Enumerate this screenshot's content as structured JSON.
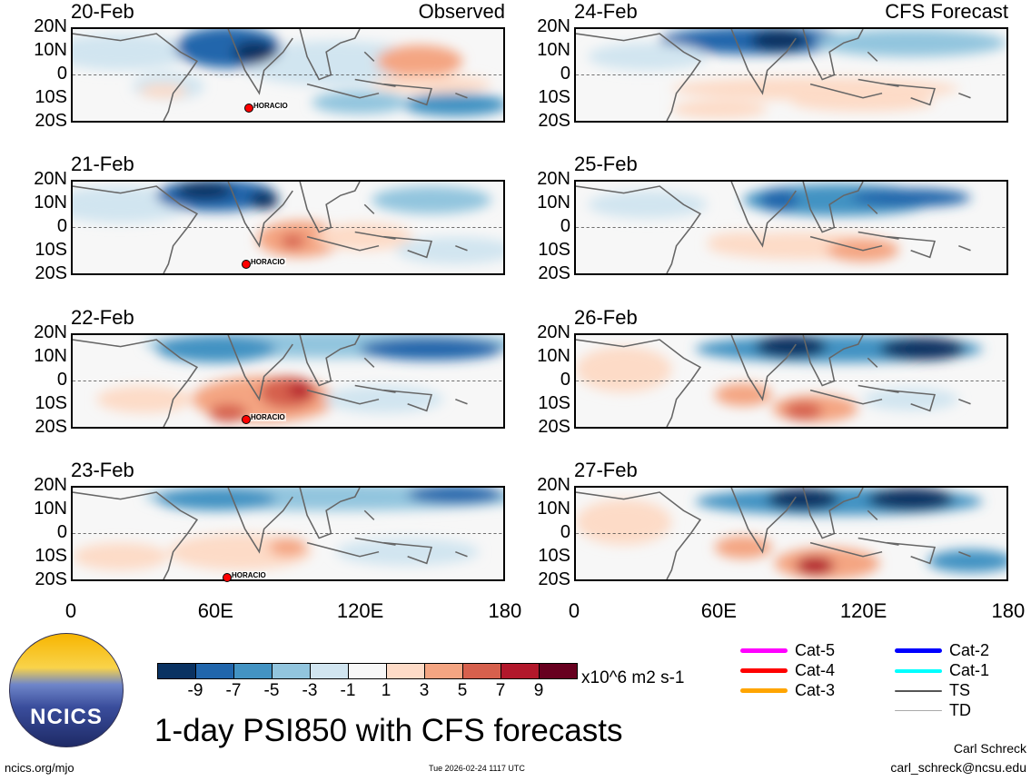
{
  "panels": [
    {
      "date": "20-Feb",
      "kind": "Observed",
      "storm": "HORACIO"
    },
    {
      "date": "21-Feb",
      "storm": "HORACIO"
    },
    {
      "date": "22-Feb",
      "storm": "HORACIO"
    },
    {
      "date": "23-Feb",
      "storm": "HORACIO"
    },
    {
      "date": "24-Feb",
      "kind": "CFS Forecast"
    },
    {
      "date": "25-Feb"
    },
    {
      "date": "26-Feb"
    },
    {
      "date": "27-Feb"
    }
  ],
  "lat_labels": [
    "20N",
    "10N",
    "0",
    "10S",
    "20S"
  ],
  "lon_labels": [
    "0",
    "60E",
    "120E",
    "180"
  ],
  "colorbar": {
    "colors": [
      "#0a3262",
      "#2166ac",
      "#4393c3",
      "#92c5de",
      "#d1e5f0",
      "#f7f7f7",
      "#fddbc7",
      "#f4a582",
      "#d6604d",
      "#b2182b",
      "#67001f"
    ],
    "labels": [
      "-9",
      "-7",
      "-5",
      "-3",
      "-1",
      "1",
      "3",
      "5",
      "7",
      "9"
    ],
    "units": "x10^6 m2 s-1"
  },
  "title": "1-day PSI850 with CFS forecasts",
  "timestamp": "Tue 2026-02-24 1117 UTC",
  "website": "ncics.org/mjo",
  "logo_text": "NCICS",
  "author": "Carl Schreck",
  "email": "carl_schreck@ncsu.edu",
  "legend": [
    {
      "label": "Cat-5",
      "color": "#ff00ff"
    },
    {
      "label": "Cat-4",
      "color": "#ff0000"
    },
    {
      "label": "Cat-3",
      "color": "#ffa500"
    },
    {
      "label": "Cat-2",
      "color": "#0000ff"
    },
    {
      "label": "Cat-1",
      "color": "#00ffff"
    },
    {
      "label": "TS",
      "color": "#555555"
    },
    {
      "label": "TD",
      "color": "#aaaaaa"
    }
  ]
}
